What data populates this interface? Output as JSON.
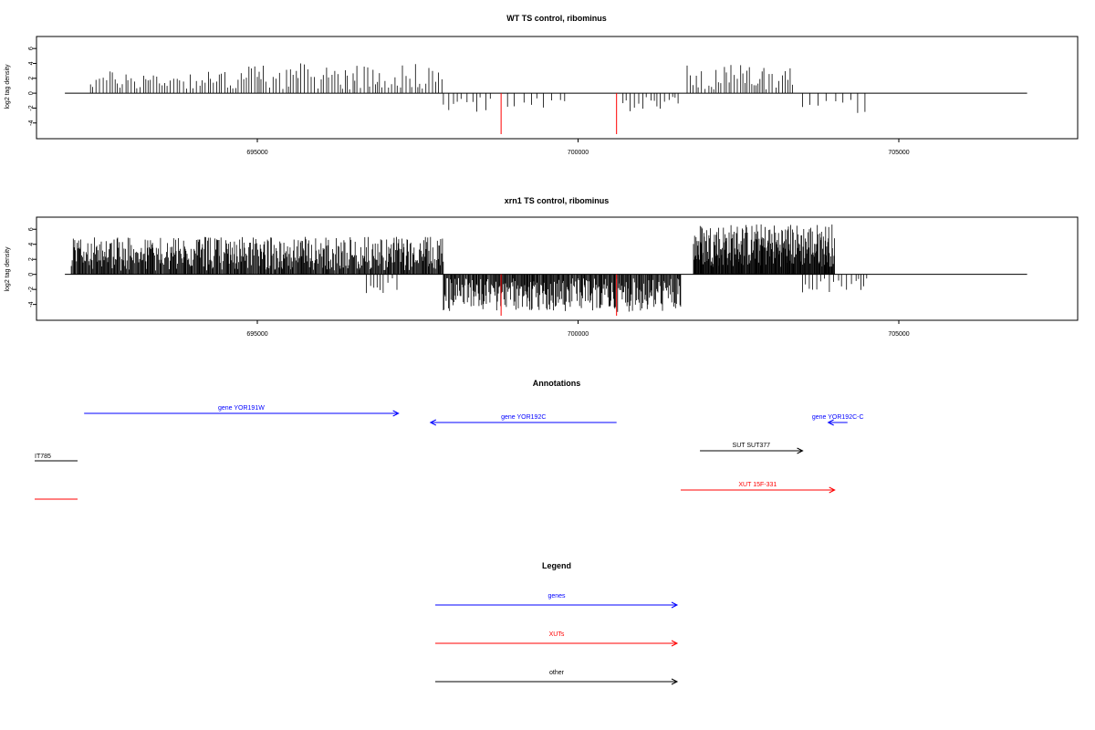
{
  "chart_data": [
    {
      "type": "bar",
      "title": "WT TS control, ribominus",
      "ylabel": "log2 tag density",
      "xlabel": "",
      "xlim": [
        692000,
        707000
      ],
      "ylim": [
        -5.5,
        7
      ],
      "yticks": [
        6,
        4,
        2,
        0,
        -2,
        -4
      ],
      "xticks": [
        695000,
        700000,
        705000
      ],
      "baseline_range": [
        692000,
        707000
      ],
      "highlight_color": "#ff0000",
      "bar_color": "#000000",
      "regions": [
        {
          "start": 692400,
          "end": 694700,
          "min": 0.5,
          "max": 3.0,
          "step": 45,
          "sign": 1
        },
        {
          "start": 694700,
          "end": 697900,
          "min": 0.5,
          "max": 4.0,
          "step": 42,
          "sign": 1
        },
        {
          "start": 697900,
          "end": 698700,
          "min": 0.5,
          "max": 2.5,
          "step": 70,
          "sign": -1
        },
        {
          "start": 698900,
          "end": 699800,
          "min": 0.5,
          "max": 2.0,
          "step": 110,
          "sign": -1
        },
        {
          "start": 700700,
          "end": 701600,
          "min": 0.5,
          "max": 2.5,
          "step": 55,
          "sign": -1
        },
        {
          "start": 701700,
          "end": 703400,
          "min": 0.5,
          "max": 3.8,
          "step": 45,
          "sign": 1
        },
        {
          "start": 703500,
          "end": 704500,
          "min": 0.8,
          "max": 2.8,
          "step": 140,
          "sign": -1
        }
      ],
      "highlight_bars": [
        {
          "x": 698800,
          "y": -5.5
        },
        {
          "x": 700600,
          "y": -5.5
        }
      ]
    },
    {
      "type": "bar",
      "title": "xrn1 TS control, ribominus",
      "ylabel": "log2 tag density",
      "xlabel": "",
      "xlim": [
        692000,
        707000
      ],
      "ylim": [
        -5.5,
        7
      ],
      "yticks": [
        6,
        4,
        2,
        0,
        -2,
        -4
      ],
      "xticks": [
        695000,
        700000,
        705000
      ],
      "baseline_range": [
        692000,
        707000
      ],
      "highlight_color": "#ff0000",
      "bar_color": "#000000",
      "regions": [
        {
          "start": 692100,
          "end": 697900,
          "min": 0.5,
          "max": 5.0,
          "step": 12,
          "sign": 1
        },
        {
          "start": 696700,
          "end": 697200,
          "min": 0.5,
          "max": 2.5,
          "step": 60,
          "sign": -1
        },
        {
          "start": 697900,
          "end": 701600,
          "min": 0.5,
          "max": 5.0,
          "step": 12,
          "sign": -1
        },
        {
          "start": 701800,
          "end": 704000,
          "min": 1.0,
          "max": 6.8,
          "step": 9,
          "sign": 1
        },
        {
          "start": 703500,
          "end": 704500,
          "min": 0.5,
          "max": 2.5,
          "step": 60,
          "sign": -1
        }
      ],
      "highlight_bars": [
        {
          "x": 698800,
          "y": -5.5
        },
        {
          "x": 700600,
          "y": -5.5
        }
      ]
    }
  ],
  "annotations": {
    "title": "Annotations",
    "xlim": [
      692000,
      707000
    ],
    "items": [
      {
        "label": "gene YOR191W",
        "start": 692300,
        "end": 697200,
        "direction": "forward",
        "color": "#0000ff",
        "row": 0
      },
      {
        "label": "gene YOR192C",
        "start": 697700,
        "end": 700600,
        "direction": "reverse",
        "color": "#0000ff",
        "row": 1
      },
      {
        "label": "gene YOR192C-C",
        "start": 703900,
        "end": 704200,
        "direction": "reverse",
        "color": "#0000ff",
        "row": 1
      },
      {
        "label": "SUT SUT377",
        "start": 701900,
        "end": 703500,
        "direction": "forward",
        "color": "#000000",
        "row": 2
      },
      {
        "label": "XUT 15F-331",
        "start": 701600,
        "end": 704000,
        "direction": "forward",
        "color": "#ff0000",
        "row": 3
      }
    ],
    "clipped": [
      {
        "label": "IT785",
        "color": "#000000",
        "row": 2
      },
      {
        "label": "",
        "color": "#ff0000",
        "row": 3
      }
    ]
  },
  "legend": {
    "title": "Legend",
    "entries": [
      {
        "label": "genes",
        "color": "#0000ff"
      },
      {
        "label": "XUTs",
        "color": "#ff0000"
      },
      {
        "label": "other",
        "color": "#000000"
      }
    ]
  }
}
